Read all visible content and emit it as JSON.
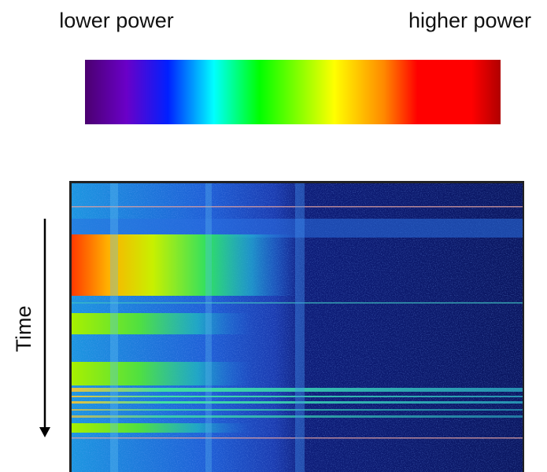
{
  "legend": {
    "low_label": "lower power",
    "high_label": "higher power"
  },
  "axis": {
    "time_label": "Time"
  }
}
